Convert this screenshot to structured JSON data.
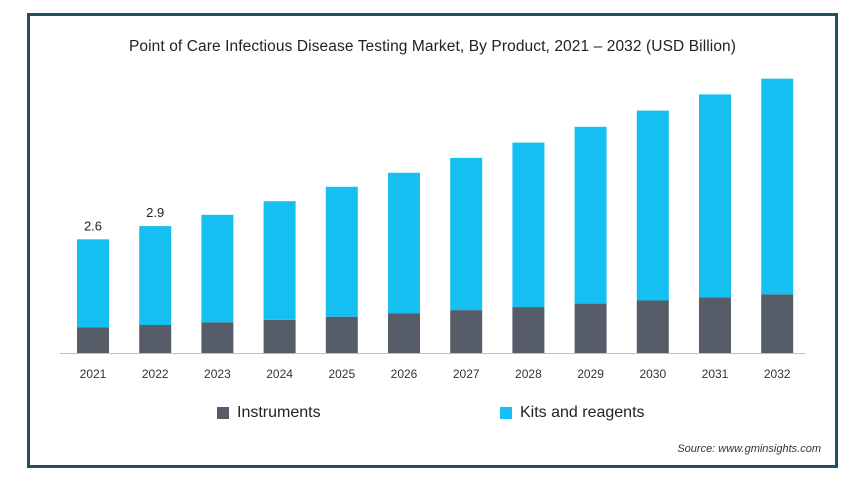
{
  "chart_data": {
    "type": "bar",
    "stacked": true,
    "title": "Point of Care Infectious Disease Testing Market, By Product, 2021 – 2032 (USD Billion)",
    "xlabel": "",
    "ylabel": "",
    "categories": [
      "2021",
      "2022",
      "2023",
      "2024",
      "2025",
      "2026",
      "2027",
      "2028",
      "2029",
      "2030",
      "2031",
      "2032"
    ],
    "series": [
      {
        "name": "Instruments",
        "color": "#565d68",
        "values": [
          0.59,
          0.64,
          0.7,
          0.76,
          0.83,
          0.91,
          0.98,
          1.05,
          1.13,
          1.2,
          1.27,
          1.34
        ]
      },
      {
        "name": "Kits and reagents",
        "color": "#15bff2",
        "values": [
          2.01,
          2.26,
          2.46,
          2.71,
          2.97,
          3.21,
          3.48,
          3.76,
          4.04,
          4.34,
          4.64,
          4.93
        ]
      }
    ],
    "data_labels": [
      {
        "category": "2021",
        "text": "2.6"
      },
      {
        "category": "2022",
        "text": "2.9"
      }
    ],
    "ylim": [
      0,
      6.4
    ],
    "grid": false,
    "legend": "bottom"
  },
  "source": "Source: www.gminsights.com"
}
